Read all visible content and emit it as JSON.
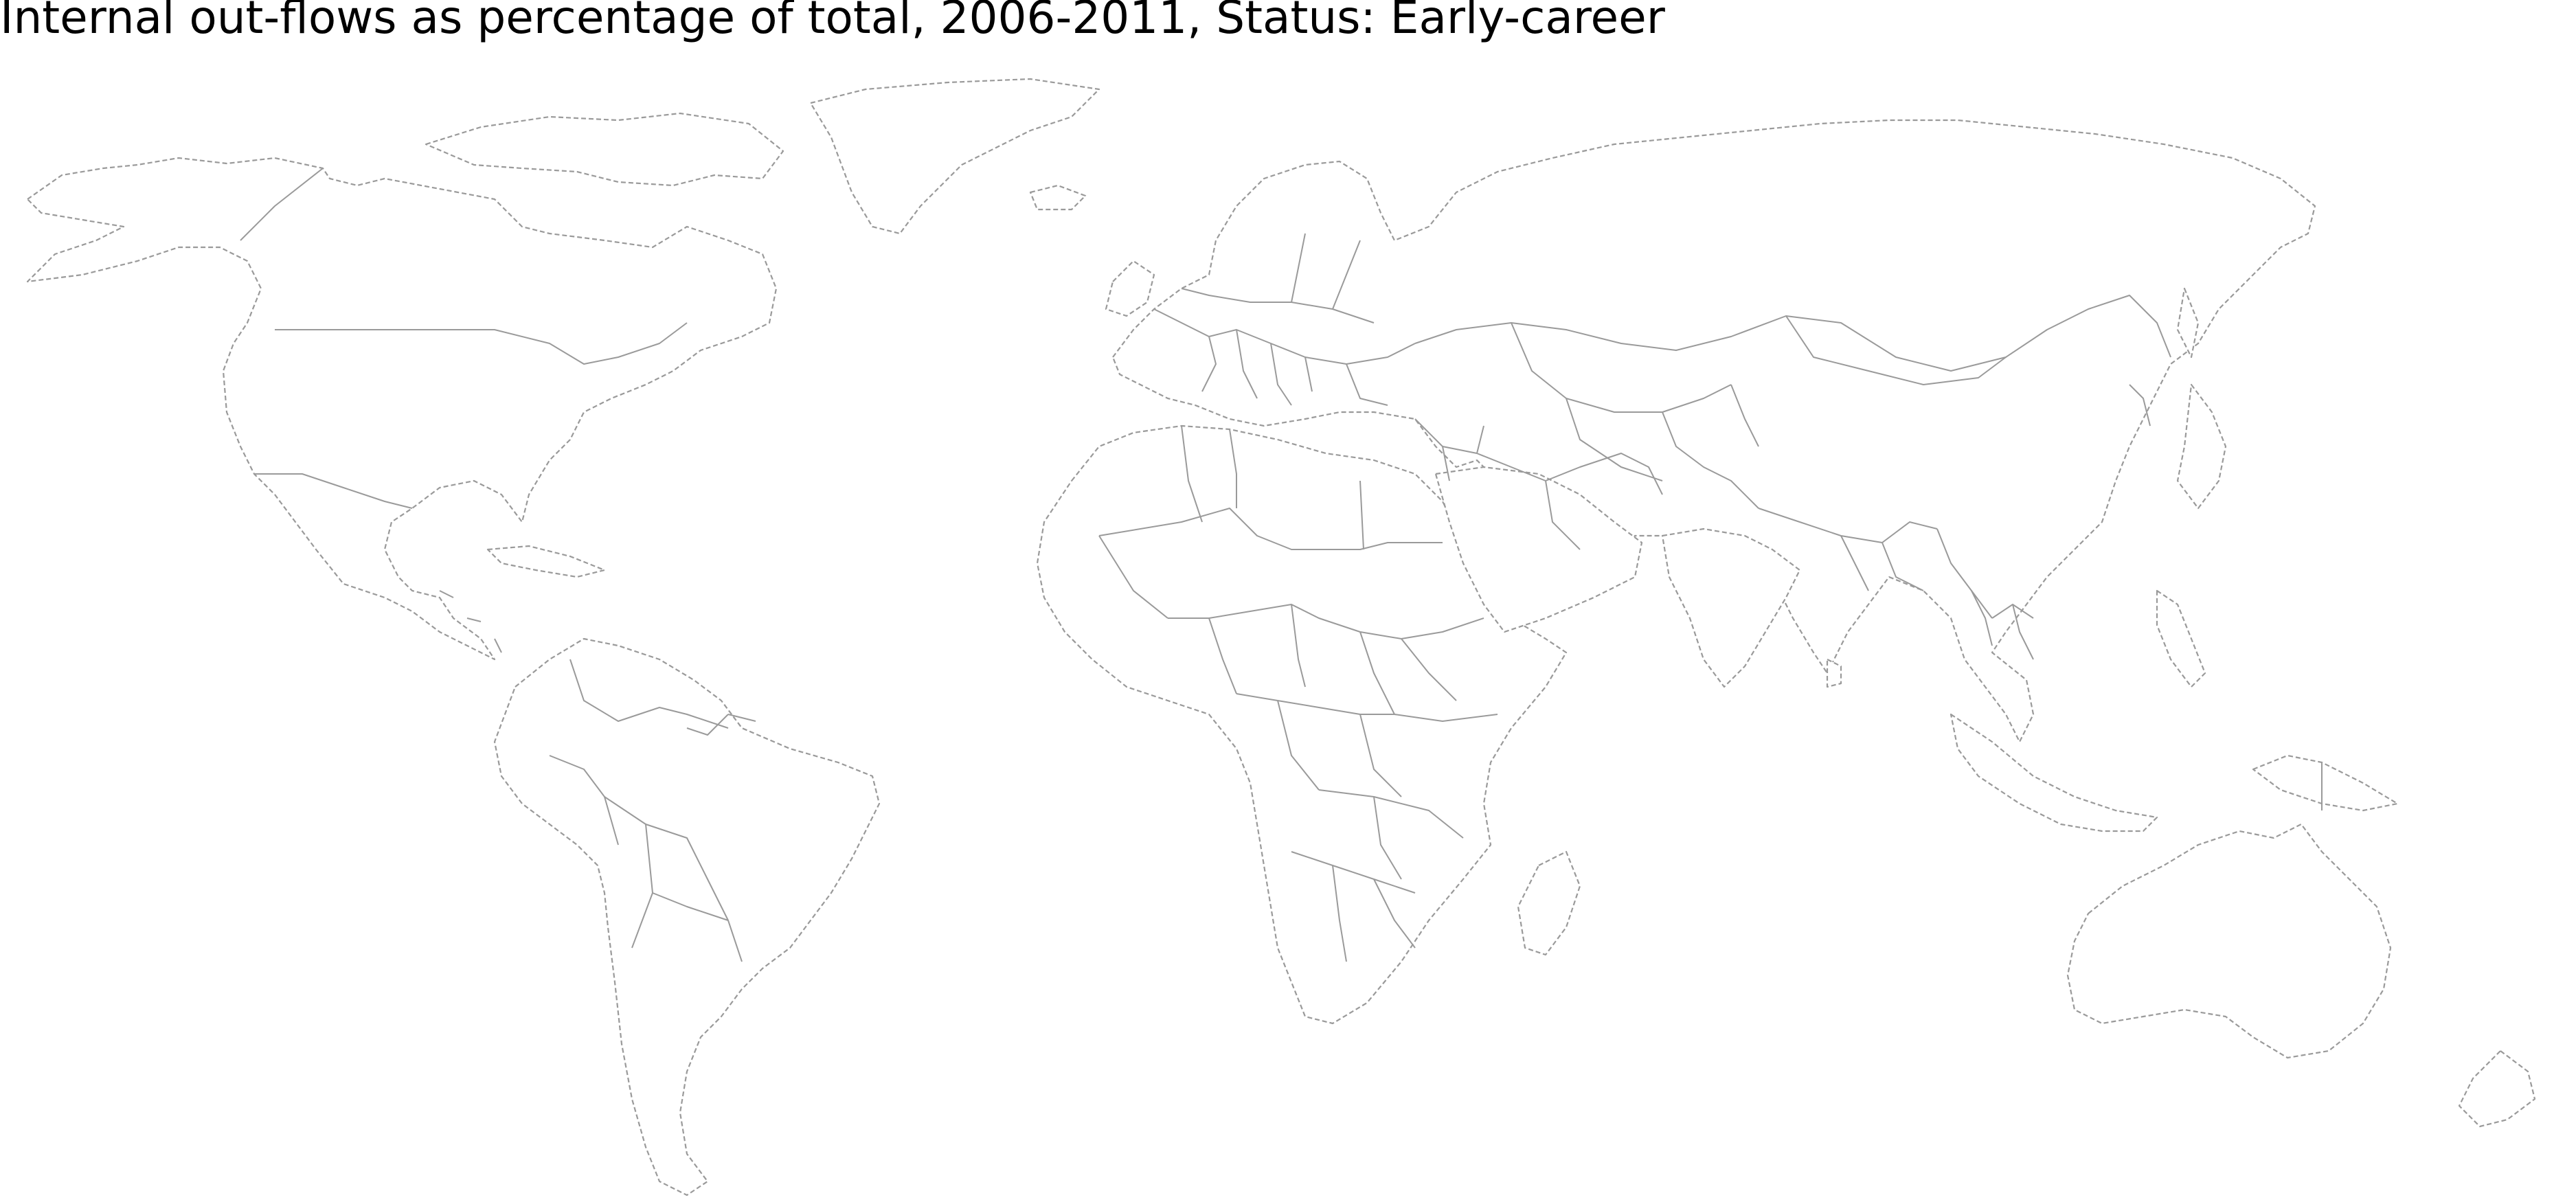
{
  "map": {
    "title": "Internal out-flows as percentage of total, 2006-2011, Status: Early-career",
    "projection": "equirectangular",
    "fill_color": "#ffffff",
    "outline_color": "#9a9a9a",
    "coastline_style": "dashed",
    "border_style": "solid",
    "shaded_countries": [],
    "legend": null
  }
}
